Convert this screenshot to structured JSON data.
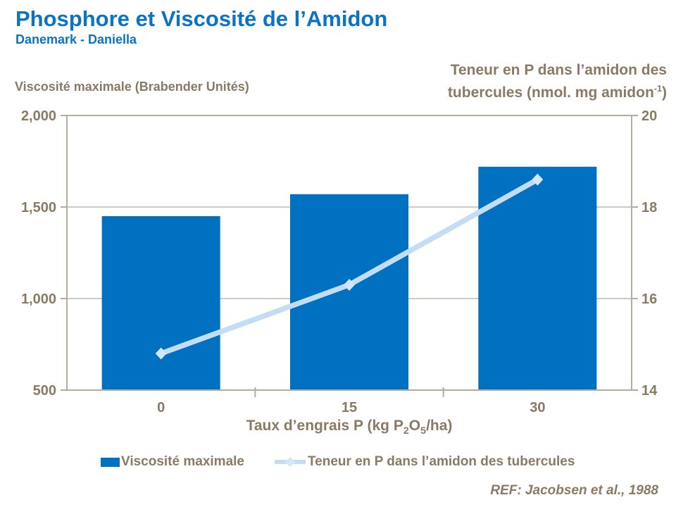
{
  "header": {
    "title": "Phosphore et Viscosité de l’Amidon",
    "subtitle": "Danemark - Daniella"
  },
  "axes": {
    "left_title": "Viscosité maximale (Brabender Unités)",
    "right_title_line1": "Teneur en P dans l’amidon des",
    "right_title_line2_pre": "tubercules (nmol. mg amidon",
    "right_title_sup": "-1",
    "right_title_line2_post": ")",
    "x_title_pre": "Taux d’engrais P (kg P",
    "x_title_sub1": "2",
    "x_title_mid": "O",
    "x_title_sub2": "5",
    "x_title_post": "/ha)"
  },
  "legend": [
    {
      "label": "Viscosité maximale",
      "swatch": "bar"
    },
    {
      "label": "Teneur en P dans l’amidon des tubercules",
      "swatch": "line-diamond"
    }
  ],
  "footer": {
    "reference": "REF: Jacobsen et al., 1988"
  },
  "colors": {
    "title_blue": "#0B73C4",
    "bar_blue": "#0070C0",
    "line_light_blue": "#C3DDF5",
    "marker_light_blue": "#D2E7F9",
    "text_brown": "#8A7A64",
    "axis_frame": "#B5ACA0",
    "gridline": "#C1B8AC"
  },
  "chart_data": {
    "type": "combo",
    "categories": [
      "0",
      "15",
      "30"
    ],
    "series": [
      {
        "name": "Viscosité maximale",
        "type": "bar",
        "axis": "left",
        "values": [
          1450,
          1570,
          1720
        ]
      },
      {
        "name": "Teneur en P dans l’amidon des tubercules",
        "type": "line",
        "axis": "right",
        "values": [
          14.8,
          16.3,
          18.6
        ],
        "marker": "diamond"
      }
    ],
    "left_axis": {
      "min": 500,
      "max": 2000,
      "tick_step": 500,
      "ticks": [
        500,
        1000,
        1500,
        2000
      ]
    },
    "right_axis": {
      "min": 14,
      "max": 20,
      "tick_step": 2,
      "ticks": [
        14,
        16,
        18,
        20
      ]
    },
    "xlabel": "Taux d’engrais P (kg P2O5/ha)",
    "grid": true,
    "legend_position": "bottom"
  }
}
